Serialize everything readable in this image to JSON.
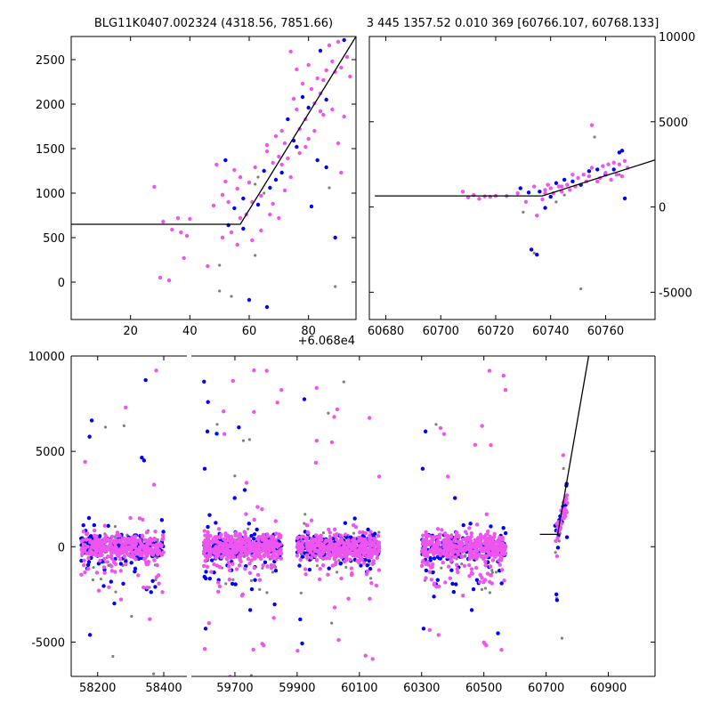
{
  "figure": {
    "title_left": "BLG11K0407.002324 (4318.56, 7851.66)",
    "title_right": "3 445 1357.52 0.010 369 [60766.107, 60768.133]",
    "offset_label": "+6.068e4"
  },
  "colors": {
    "blue": "#0000ff",
    "magenta": "#ee55ee",
    "gray": "#808080",
    "model": "#000000"
  },
  "chart_data": [
    {
      "type": "scatter",
      "name": "zoom-left",
      "xlim": [
        0,
        96
      ],
      "ylim": [
        -420,
        2760
      ],
      "xticks": [
        20,
        40,
        60,
        80
      ],
      "yticks": [
        0,
        500,
        1000,
        1500,
        2000,
        2500
      ],
      "x_offset": 60680,
      "model_line": [
        [
          0,
          650
        ],
        [
          57,
          650
        ],
        [
          96,
          2760
        ]
      ],
      "points": [
        [
          28,
          1070,
          "m"
        ],
        [
          30,
          50,
          "m"
        ],
        [
          31,
          680,
          "m"
        ],
        [
          33,
          20,
          "m"
        ],
        [
          34,
          590,
          "m"
        ],
        [
          36,
          720,
          "m"
        ],
        [
          37,
          560,
          "m"
        ],
        [
          38,
          270,
          "m"
        ],
        [
          39,
          520,
          "m"
        ],
        [
          40,
          710,
          "m"
        ],
        [
          46,
          180,
          "m"
        ],
        [
          48,
          860,
          "m"
        ],
        [
          49,
          1320,
          "m"
        ],
        [
          50,
          190,
          "g"
        ],
        [
          50,
          -100,
          "g"
        ],
        [
          51,
          500,
          "m"
        ],
        [
          51,
          980,
          "m"
        ],
        [
          52,
          1130,
          "m"
        ],
        [
          52,
          1370,
          "b"
        ],
        [
          53,
          640,
          "b"
        ],
        [
          53,
          900,
          "m"
        ],
        [
          54,
          560,
          "m"
        ],
        [
          54,
          -160,
          "g"
        ],
        [
          55,
          830,
          "b"
        ],
        [
          55,
          1260,
          "m"
        ],
        [
          56,
          1050,
          "m"
        ],
        [
          56,
          420,
          "m"
        ],
        [
          57,
          1180,
          "m"
        ],
        [
          57,
          720,
          "m"
        ],
        [
          58,
          940,
          "b"
        ],
        [
          58,
          600,
          "b"
        ],
        [
          59,
          760,
          "m"
        ],
        [
          60,
          1120,
          "m"
        ],
        [
          60,
          -200,
          "b"
        ],
        [
          61,
          470,
          "m"
        ],
        [
          61,
          900,
          "m"
        ],
        [
          62,
          1290,
          "m"
        ],
        [
          62,
          300,
          "g"
        ],
        [
          63,
          1180,
          "g"
        ],
        [
          63,
          870,
          "b"
        ],
        [
          64,
          970,
          "m"
        ],
        [
          64,
          580,
          "m"
        ],
        [
          65,
          1000,
          "g"
        ],
        [
          65,
          1250,
          "b"
        ],
        [
          66,
          -280,
          "b"
        ],
        [
          66,
          1540,
          "m"
        ],
        [
          67,
          760,
          "m"
        ],
        [
          67,
          1060,
          "b"
        ],
        [
          68,
          1340,
          "m"
        ],
        [
          68,
          880,
          "m"
        ],
        [
          69,
          1640,
          "m"
        ],
        [
          69,
          1150,
          "b"
        ],
        [
          70,
          1410,
          "m"
        ],
        [
          70,
          720,
          "m"
        ],
        [
          71,
          1230,
          "b"
        ],
        [
          71,
          1700,
          "m"
        ],
        [
          72,
          1030,
          "m"
        ],
        [
          72,
          1560,
          "m"
        ],
        [
          73,
          1830,
          "b"
        ],
        [
          73,
          1390,
          "m"
        ],
        [
          74,
          2590,
          "m"
        ],
        [
          74,
          1180,
          "m"
        ],
        [
          75,
          2060,
          "m"
        ],
        [
          75,
          1590,
          "b"
        ],
        [
          76,
          1940,
          "m"
        ],
        [
          76,
          2390,
          "m"
        ],
        [
          77,
          1720,
          "m"
        ],
        [
          77,
          1450,
          "m"
        ],
        [
          78,
          2230,
          "m"
        ],
        [
          78,
          2080,
          "b"
        ],
        [
          79,
          1830,
          "m"
        ],
        [
          79,
          1520,
          "m"
        ],
        [
          80,
          2440,
          "m"
        ],
        [
          80,
          1960,
          "b"
        ],
        [
          81,
          2170,
          "m"
        ],
        [
          81,
          850,
          "b"
        ],
        [
          82,
          1700,
          "m"
        ],
        [
          82,
          2010,
          "m"
        ],
        [
          83,
          2290,
          "m"
        ],
        [
          83,
          1370,
          "b"
        ],
        [
          84,
          2600,
          "b"
        ],
        [
          84,
          2120,
          "m"
        ],
        [
          85,
          1880,
          "m"
        ],
        [
          85,
          2270,
          "m"
        ],
        [
          86,
          2380,
          "m"
        ],
        [
          86,
          1290,
          "b"
        ],
        [
          87,
          2660,
          "m"
        ],
        [
          87,
          1060,
          "g"
        ],
        [
          88,
          2480,
          "m"
        ],
        [
          88,
          1940,
          "m"
        ],
        [
          89,
          2360,
          "m"
        ],
        [
          89,
          500,
          "b"
        ],
        [
          90,
          2700,
          "m"
        ],
        [
          90,
          1560,
          "m"
        ],
        [
          91,
          2410,
          "m"
        ],
        [
          91,
          1230,
          "m"
        ],
        [
          92,
          2720,
          "b"
        ],
        [
          92,
          1860,
          "m"
        ],
        [
          93,
          2530,
          "m"
        ],
        [
          94,
          2310,
          "m"
        ],
        [
          89,
          -50,
          "g"
        ],
        [
          86,
          2050,
          "b"
        ],
        [
          84,
          1920,
          "m"
        ],
        [
          80,
          1610,
          "m"
        ],
        [
          76,
          1520,
          "b"
        ],
        [
          71,
          1320,
          "m"
        ],
        [
          66,
          1470,
          "m"
        ],
        [
          62,
          1100,
          "g"
        ]
      ]
    },
    {
      "type": "scatter",
      "name": "zoom-right",
      "xlim": [
        60674,
        60778
      ],
      "ylim": [
        -6600,
        10000
      ],
      "xticks": [
        60680,
        60700,
        60720,
        60740,
        60760
      ],
      "yticks": [
        -5000,
        0,
        5000,
        10000
      ],
      "model_line": [
        [
          60676,
          650
        ],
        [
          60737,
          650
        ],
        [
          60778,
          2760
        ]
      ],
      "points": [
        [
          60708,
          900,
          "m"
        ],
        [
          60710,
          560,
          "m"
        ],
        [
          60712,
          700,
          "m"
        ],
        [
          60714,
          480,
          "m"
        ],
        [
          60716,
          620,
          "m"
        ],
        [
          60718,
          600,
          "m"
        ],
        [
          60720,
          650,
          "m"
        ],
        [
          60724,
          640,
          "m"
        ],
        [
          60728,
          800,
          "m"
        ],
        [
          60729,
          1100,
          "b"
        ],
        [
          60730,
          -300,
          "g"
        ],
        [
          60731,
          300,
          "m"
        ],
        [
          60732,
          850,
          "b"
        ],
        [
          60733,
          -2500,
          "b"
        ],
        [
          60734,
          -2700,
          "g"
        ],
        [
          60734,
          1200,
          "m"
        ],
        [
          60735,
          -500,
          "m"
        ],
        [
          60735,
          -2800,
          "b"
        ],
        [
          60736,
          900,
          "b"
        ],
        [
          60737,
          450,
          "m"
        ],
        [
          60738,
          1000,
          "m"
        ],
        [
          60738,
          -50,
          "b"
        ],
        [
          60739,
          1300,
          "m"
        ],
        [
          60740,
          600,
          "b"
        ],
        [
          60740,
          1100,
          "m"
        ],
        [
          60741,
          800,
          "m"
        ],
        [
          60742,
          1400,
          "b"
        ],
        [
          60742,
          300,
          "g"
        ],
        [
          60743,
          1200,
          "m"
        ],
        [
          60744,
          900,
          "m"
        ],
        [
          60745,
          1600,
          "b"
        ],
        [
          60745,
          700,
          "g"
        ],
        [
          60746,
          1300,
          "m"
        ],
        [
          60747,
          1000,
          "m"
        ],
        [
          60748,
          1500,
          "b"
        ],
        [
          60748,
          1900,
          "m"
        ],
        [
          60749,
          1200,
          "m"
        ],
        [
          60750,
          1700,
          "m"
        ],
        [
          60751,
          -4800,
          "g"
        ],
        [
          60751,
          1300,
          "b"
        ],
        [
          60752,
          1900,
          "m"
        ],
        [
          60753,
          1500,
          "m"
        ],
        [
          60754,
          2100,
          "b"
        ],
        [
          60754,
          1800,
          "m"
        ],
        [
          60755,
          4800,
          "m"
        ],
        [
          60755,
          2300,
          "m"
        ],
        [
          60756,
          4100,
          "g"
        ],
        [
          60757,
          1500,
          "m"
        ],
        [
          60757,
          2200,
          "b"
        ],
        [
          60758,
          1700,
          "m"
        ],
        [
          60759,
          2400,
          "m"
        ],
        [
          60760,
          1900,
          "b"
        ],
        [
          60760,
          2000,
          "m"
        ],
        [
          60761,
          2500,
          "m"
        ],
        [
          60762,
          1600,
          "m"
        ],
        [
          60763,
          2200,
          "b"
        ],
        [
          60763,
          2600,
          "m"
        ],
        [
          60764,
          1900,
          "m"
        ],
        [
          60765,
          3200,
          "b"
        ],
        [
          60765,
          2500,
          "m"
        ],
        [
          60766,
          3300,
          "b"
        ],
        [
          60766,
          1800,
          "m"
        ],
        [
          60767,
          2700,
          "m"
        ],
        [
          60767,
          500,
          "b"
        ],
        [
          60768,
          2300,
          "m"
        ],
        [
          60765,
          1900,
          "g"
        ],
        [
          60744,
          1200,
          "m"
        ],
        [
          60738,
          800,
          "m"
        ]
      ]
    },
    {
      "type": "scatter",
      "name": "full-light-curve",
      "ylim": [
        -6800,
        10000
      ],
      "yticks": [
        -5000,
        0,
        5000,
        10000
      ],
      "segments": [
        {
          "xlim": [
            58120,
            58470
          ],
          "xticks": [
            58200,
            58400
          ],
          "data_range": [
            58150,
            58400
          ]
        },
        {
          "xlim": [
            59560,
            61050
          ],
          "xticks": [
            59700,
            59900,
            60100,
            60300,
            60500,
            60700,
            60900
          ],
          "data_ranges": [
            [
              59600,
              59850
            ],
            [
              59900,
              60165
            ],
            [
              60300,
              60570
            ],
            [
              60730,
              60768
            ]
          ]
        }
      ],
      "model_line": [
        [
          60680,
          650
        ],
        [
          60737,
          650
        ],
        [
          61050,
          30000
        ]
      ]
    }
  ]
}
